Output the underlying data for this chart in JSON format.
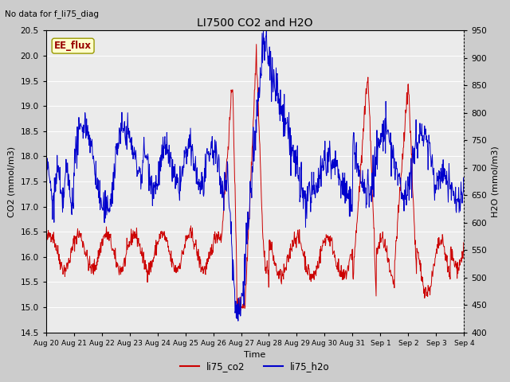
{
  "title": "LI7500 CO2 and H2O",
  "subtitle": "No data for f_li75_diag",
  "xlabel": "Time",
  "ylabel_left": "CO2 (mmol/m3)",
  "ylabel_right": "H2O (mmol/m3)",
  "ylim_left": [
    14.5,
    20.5
  ],
  "ylim_right": [
    400,
    950
  ],
  "yticks_left": [
    14.5,
    15.0,
    15.5,
    16.0,
    16.5,
    17.0,
    17.5,
    18.0,
    18.5,
    19.0,
    19.5,
    20.0,
    20.5
  ],
  "yticks_right": [
    400,
    450,
    500,
    550,
    600,
    650,
    700,
    750,
    800,
    850,
    900,
    950
  ],
  "xtick_labels": [
    "Aug 20",
    "Aug 21",
    "Aug 22",
    "Aug 23",
    "Aug 24",
    "Aug 25",
    "Aug 26",
    "Aug 27",
    "Aug 28",
    "Aug 29",
    "Aug 30",
    "Aug 31",
    "Sep 1",
    "Sep 2",
    "Sep 3",
    "Sep 4"
  ],
  "legend_label_co2": "li75_co2",
  "legend_label_h2o": "li75_h2o",
  "co2_color": "#CC0000",
  "h2o_color": "#0000CC",
  "annotation_text": "EE_flux",
  "annotation_color": "#990000",
  "annotation_bg": "#FFFFCC",
  "plot_bg_color": "#EBEBEB",
  "fig_bg_color": "#CCCCCC"
}
